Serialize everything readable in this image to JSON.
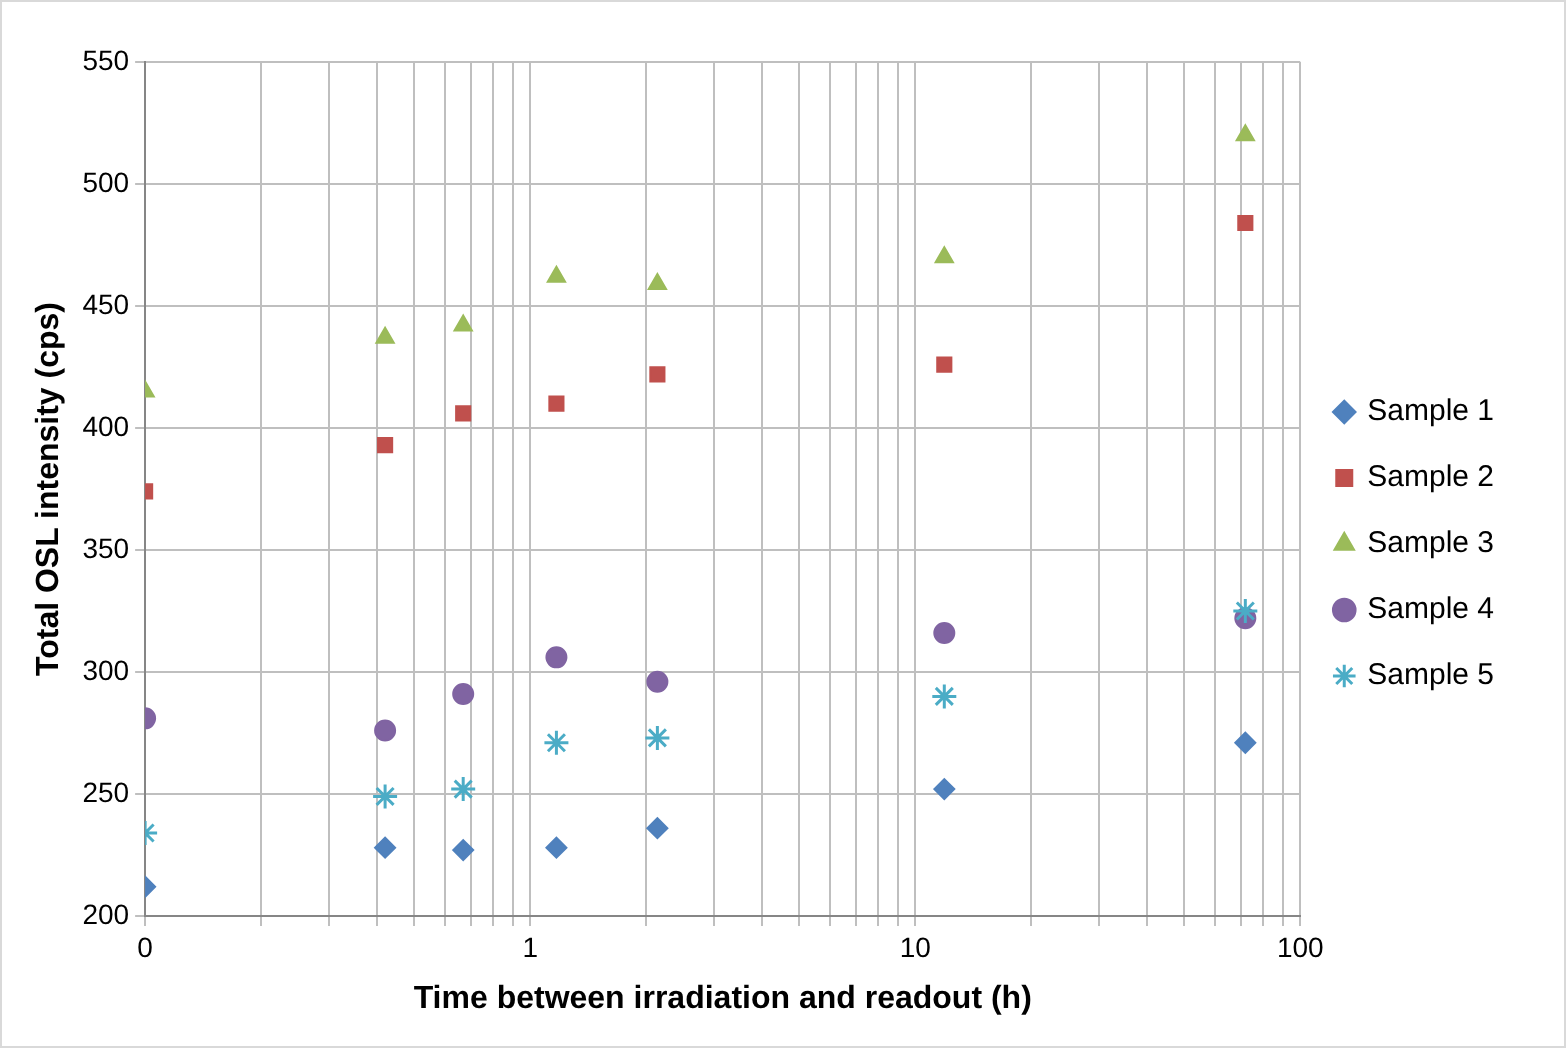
{
  "chart_data": {
    "type": "scatter",
    "xlabel": "Time between irradiation and readout (h)",
    "ylabel": "Total OSL intensity (cps)",
    "x": [
      0.1,
      0.42,
      0.67,
      1.17,
      2.14,
      11.9,
      72
    ],
    "series": [
      {
        "name": "Sample 1",
        "color": "#4f81bd",
        "marker": "diamond",
        "values": [
          212,
          228,
          227,
          228,
          236,
          252,
          271
        ]
      },
      {
        "name": "Sample 2",
        "color": "#c0504d",
        "marker": "square",
        "values": [
          374,
          393,
          406,
          410,
          422,
          426,
          484
        ]
      },
      {
        "name": "Sample 3",
        "color": "#9bbb59",
        "marker": "triangle",
        "values": [
          415,
          437,
          442,
          462,
          459,
          470,
          520
        ]
      },
      {
        "name": "Sample 4",
        "color": "#8064a2",
        "marker": "circle",
        "values": [
          281,
          276,
          291,
          306,
          296,
          316,
          322
        ]
      },
      {
        "name": "Sample 5",
        "color": "#4bacc6",
        "marker": "cross",
        "values": [
          234,
          249,
          252,
          271,
          273,
          290,
          325
        ]
      }
    ],
    "log": "x",
    "xlim": [
      0.1,
      100
    ],
    "xticks": [
      {
        "value": 0.1,
        "label": "0"
      },
      {
        "value": 0.2,
        "label": null
      },
      {
        "value": 0.3,
        "label": null
      },
      {
        "value": 0.4,
        "label": null
      },
      {
        "value": 0.5,
        "label": null
      },
      {
        "value": 0.6,
        "label": null
      },
      {
        "value": 0.7,
        "label": null
      },
      {
        "value": 0.8,
        "label": null
      },
      {
        "value": 0.9,
        "label": null
      },
      1,
      {
        "value": 2,
        "label": null
      },
      {
        "value": 3,
        "label": null
      },
      {
        "value": 4,
        "label": null
      },
      {
        "value": 5,
        "label": null
      },
      {
        "value": 6,
        "label": null
      },
      {
        "value": 7,
        "label": null
      },
      {
        "value": 8,
        "label": null
      },
      {
        "value": 9,
        "label": null
      },
      10,
      {
        "value": 20,
        "label": null
      },
      {
        "value": 30,
        "label": null
      },
      {
        "value": 40,
        "label": null
      },
      {
        "value": 50,
        "label": null
      },
      {
        "value": 60,
        "label": null
      },
      {
        "value": 70,
        "label": null
      },
      {
        "value": 80,
        "label": null
      },
      {
        "value": 90,
        "label": null
      },
      100
    ],
    "ylim": [
      200,
      550
    ],
    "yticks": [
      200,
      250,
      300,
      350,
      400,
      450,
      500,
      550
    ],
    "grid": true,
    "legend": "right"
  }
}
